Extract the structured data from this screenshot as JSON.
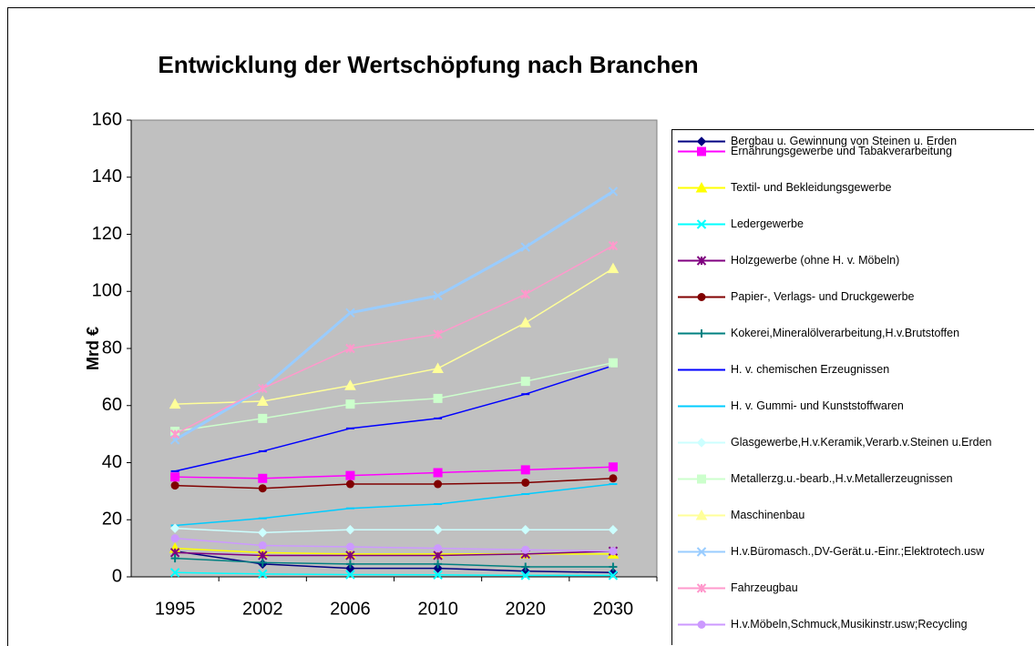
{
  "chart_data": {
    "type": "line",
    "title": "Entwicklung der Wertschöpfung nach Branchen",
    "y_label": "Mrd €",
    "categories": [
      "1995",
      "2002",
      "2006",
      "2010",
      "2020",
      "2030"
    ],
    "ylim": [
      0,
      160
    ],
    "yticks": [
      0,
      20,
      40,
      60,
      80,
      100,
      120,
      140,
      160
    ],
    "grid": false,
    "legend": "right",
    "series": [
      {
        "name": "Bergbau u. Gewinnung von Steinen u. Erden",
        "color": "#000080",
        "marker": "diamond",
        "values": [
          9,
          4.5,
          3,
          3,
          2,
          1.5
        ]
      },
      {
        "name": "Ernährungsgewerbe und Tabakverarbeitung",
        "color": "#ff00ff",
        "marker": "square",
        "values": [
          35,
          34.5,
          35.5,
          36.5,
          37.5,
          38.5
        ]
      },
      {
        "name": "Textil- und Bekleidungsgewerbe",
        "color": "#ffff00",
        "marker": "triangle",
        "values": [
          10,
          8.5,
          8,
          8,
          8,
          8
        ]
      },
      {
        "name": "Ledergewerbe",
        "color": "#00ffff",
        "marker": "x",
        "values": [
          1.5,
          1,
          0.8,
          0.7,
          0.5,
          0.5
        ]
      },
      {
        "name": "Holzgewerbe (ohne H. v. Möbeln)",
        "color": "#800080",
        "marker": "star",
        "values": [
          8.5,
          7.5,
          7.5,
          7.5,
          8,
          9
        ]
      },
      {
        "name": "Papier-, Verlags- und Druckgewerbe",
        "color": "#800000",
        "marker": "circle",
        "values": [
          32,
          31,
          32.5,
          32.5,
          33,
          34.5
        ]
      },
      {
        "name": "Kokerei,Mineralölverarbeitung,H.v.Brutstoffen",
        "color": "#008080",
        "marker": "plus",
        "values": [
          6.5,
          5,
          4.5,
          4.5,
          3.5,
          3.5
        ]
      },
      {
        "name": "H. v. chemischen Erzeugnissen",
        "color": "#0000ff",
        "marker": "dash",
        "values": [
          37,
          44,
          52,
          55.5,
          64,
          74
        ]
      },
      {
        "name": "H. v. Gummi- und Kunststoffwaren",
        "color": "#00ccff",
        "marker": "dash",
        "values": [
          18,
          20.5,
          24,
          25.5,
          29,
          32.5
        ]
      },
      {
        "name": "Glasgewerbe,H.v.Keramik,Verarb.v.Steinen u.Erden",
        "color": "#ccffff",
        "marker": "diamond",
        "values": [
          17,
          15.5,
          16.5,
          16.5,
          16.5,
          16.5
        ]
      },
      {
        "name": "Metallerzg.u.-bearb.,H.v.Metallerzeugnissen",
        "color": "#ccffcc",
        "marker": "square",
        "values": [
          51,
          55.5,
          60.5,
          62.5,
          68.5,
          75
        ]
      },
      {
        "name": "Maschinenbau",
        "color": "#ffff99",
        "marker": "triangle",
        "values": [
          60.5,
          61.5,
          67,
          73,
          89,
          108
        ]
      },
      {
        "name": "H.v.Büromasch.,DV-Gerät.u.-Einr.;Elektrotech.usw",
        "color": "#99ccff",
        "marker": "x",
        "values": [
          48,
          66,
          92.5,
          98.5,
          115.5,
          135
        ]
      },
      {
        "name": "Fahrzeugbau",
        "color": "#ff99cc",
        "marker": "star",
        "values": [
          50,
          66,
          80,
          85,
          99,
          116
        ]
      },
      {
        "name": "H.v.Möbeln,Schmuck,Musikinstr.usw;Recycling",
        "color": "#cc99ff",
        "marker": "circle",
        "values": [
          13.5,
          11,
          10.5,
          10,
          9.5,
          9
        ]
      }
    ]
  }
}
